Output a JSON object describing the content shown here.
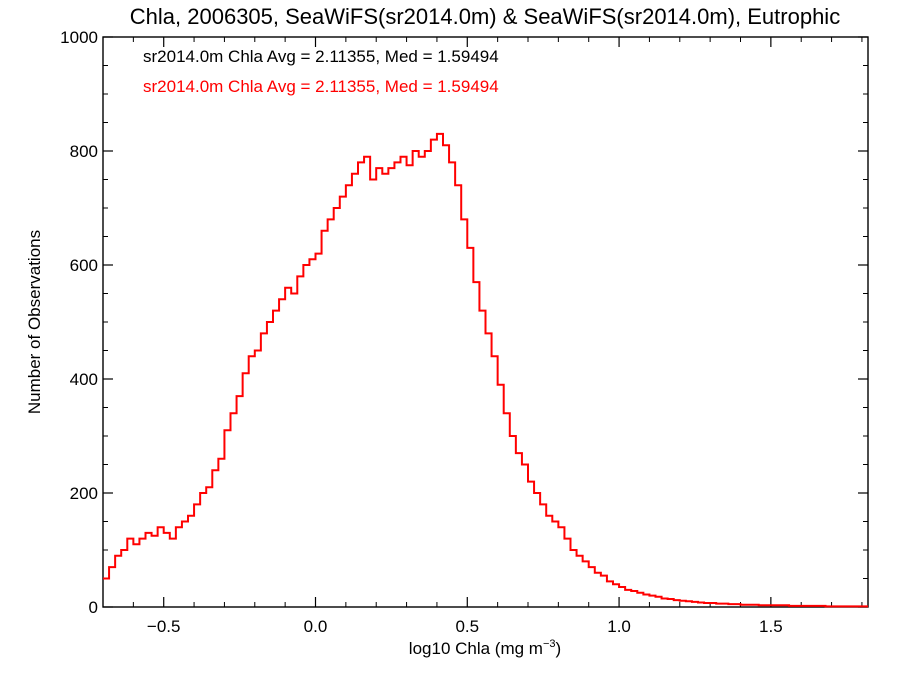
{
  "chart_data": {
    "type": "histogram",
    "title": "Chla, 2006305, SeaWiFS(sr2014.0m) & SeaWiFS(sr2014.0m), Eutrophic",
    "xlabel": "log10 Chla (mg m",
    "xlabel_sup": "−3",
    "xlabel_suffix": ")",
    "ylabel": "Number of Observations",
    "xlim": [
      -0.7,
      1.82
    ],
    "ylim": [
      0,
      1000
    ],
    "x_ticks": [
      -0.5,
      0.0,
      0.5,
      1.0,
      1.5
    ],
    "x_tick_labels": [
      "−0.5",
      "0.0",
      "0.5",
      "1.0",
      "1.5"
    ],
    "y_ticks": [
      0,
      200,
      400,
      600,
      800,
      1000
    ],
    "y_tick_labels": [
      "0",
      "200",
      "400",
      "600",
      "800",
      "1000"
    ],
    "bin_width": 0.02,
    "grid": false,
    "legend": [
      {
        "label": "sr2014.0m Chla Avg = 2.11355, Med = 1.59494",
        "color": "#000000"
      },
      {
        "label": "sr2014.0m Chla Avg = 2.11355, Med = 1.59494",
        "color": "#ff0000"
      }
    ],
    "series": [
      {
        "color": "#ff0000",
        "points": [
          [
            -0.7,
            50
          ],
          [
            -0.68,
            70
          ],
          [
            -0.66,
            90
          ],
          [
            -0.64,
            100
          ],
          [
            -0.62,
            120
          ],
          [
            -0.6,
            110
          ],
          [
            -0.58,
            120
          ],
          [
            -0.56,
            130
          ],
          [
            -0.54,
            125
          ],
          [
            -0.52,
            140
          ],
          [
            -0.5,
            130
          ],
          [
            -0.48,
            120
          ],
          [
            -0.46,
            140
          ],
          [
            -0.44,
            150
          ],
          [
            -0.42,
            160
          ],
          [
            -0.4,
            180
          ],
          [
            -0.38,
            200
          ],
          [
            -0.36,
            210
          ],
          [
            -0.34,
            240
          ],
          [
            -0.32,
            260
          ],
          [
            -0.3,
            310
          ],
          [
            -0.28,
            340
          ],
          [
            -0.26,
            370
          ],
          [
            -0.24,
            410
          ],
          [
            -0.22,
            440
          ],
          [
            -0.2,
            450
          ],
          [
            -0.18,
            480
          ],
          [
            -0.16,
            500
          ],
          [
            -0.14,
            520
          ],
          [
            -0.12,
            540
          ],
          [
            -0.1,
            560
          ],
          [
            -0.08,
            550
          ],
          [
            -0.06,
            580
          ],
          [
            -0.04,
            600
          ],
          [
            -0.02,
            610
          ],
          [
            0.0,
            620
          ],
          [
            0.02,
            660
          ],
          [
            0.04,
            680
          ],
          [
            0.06,
            700
          ],
          [
            0.08,
            720
          ],
          [
            0.1,
            740
          ],
          [
            0.12,
            760
          ],
          [
            0.14,
            780
          ],
          [
            0.16,
            790
          ],
          [
            0.18,
            750
          ],
          [
            0.2,
            770
          ],
          [
            0.22,
            760
          ],
          [
            0.24,
            770
          ],
          [
            0.26,
            780
          ],
          [
            0.28,
            790
          ],
          [
            0.3,
            775
          ],
          [
            0.32,
            800
          ],
          [
            0.34,
            790
          ],
          [
            0.36,
            800
          ],
          [
            0.38,
            820
          ],
          [
            0.4,
            830
          ],
          [
            0.42,
            810
          ],
          [
            0.44,
            780
          ],
          [
            0.46,
            740
          ],
          [
            0.48,
            680
          ],
          [
            0.5,
            630
          ],
          [
            0.52,
            570
          ],
          [
            0.54,
            520
          ],
          [
            0.56,
            480
          ],
          [
            0.58,
            440
          ],
          [
            0.6,
            390
          ],
          [
            0.62,
            340
          ],
          [
            0.64,
            300
          ],
          [
            0.66,
            270
          ],
          [
            0.68,
            250
          ],
          [
            0.7,
            220
          ],
          [
            0.72,
            200
          ],
          [
            0.74,
            180
          ],
          [
            0.76,
            160
          ],
          [
            0.78,
            150
          ],
          [
            0.8,
            140
          ],
          [
            0.82,
            120
          ],
          [
            0.84,
            100
          ],
          [
            0.86,
            90
          ],
          [
            0.88,
            80
          ],
          [
            0.9,
            70
          ],
          [
            0.92,
            60
          ],
          [
            0.94,
            55
          ],
          [
            0.96,
            45
          ],
          [
            0.98,
            40
          ],
          [
            1.0,
            35
          ],
          [
            1.02,
            30
          ],
          [
            1.04,
            28
          ],
          [
            1.06,
            25
          ],
          [
            1.08,
            22
          ],
          [
            1.1,
            20
          ],
          [
            1.12,
            18
          ],
          [
            1.14,
            15
          ],
          [
            1.16,
            14
          ],
          [
            1.18,
            12
          ],
          [
            1.2,
            11
          ],
          [
            1.22,
            10
          ],
          [
            1.24,
            9
          ],
          [
            1.26,
            8
          ],
          [
            1.28,
            7
          ],
          [
            1.3,
            7
          ],
          [
            1.32,
            6
          ],
          [
            1.34,
            6
          ],
          [
            1.36,
            5
          ],
          [
            1.38,
            5
          ],
          [
            1.4,
            4
          ],
          [
            1.42,
            4
          ],
          [
            1.44,
            4
          ],
          [
            1.46,
            3
          ],
          [
            1.48,
            3
          ],
          [
            1.5,
            3
          ],
          [
            1.52,
            3
          ],
          [
            1.54,
            3
          ],
          [
            1.56,
            2
          ],
          [
            1.58,
            2
          ],
          [
            1.6,
            2
          ],
          [
            1.62,
            2
          ],
          [
            1.64,
            2
          ],
          [
            1.66,
            2
          ],
          [
            1.68,
            1
          ],
          [
            1.7,
            1
          ],
          [
            1.72,
            1
          ],
          [
            1.74,
            1
          ],
          [
            1.76,
            1
          ],
          [
            1.78,
            1
          ],
          [
            1.8,
            1
          ]
        ]
      }
    ]
  }
}
